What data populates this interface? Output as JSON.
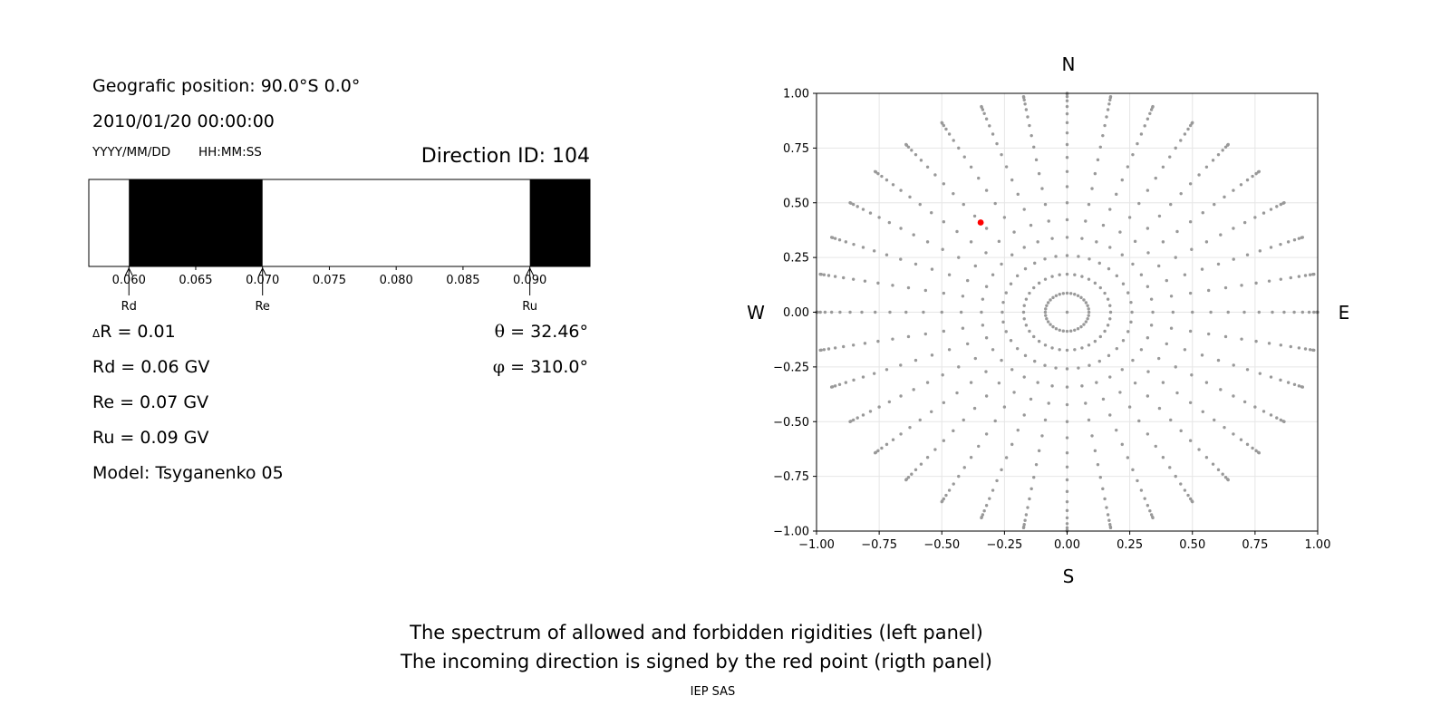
{
  "info": {
    "position": "Geografic position: 90.0°S 0.0°",
    "datetime": "2010/01/20 00:00:00",
    "date_format": "YYYY/MM/DD",
    "time_format": "HH:MM:SS",
    "direction_id": "Direction ID: 104",
    "delta_r": "R = 0.01",
    "delta_symbol": "Δ",
    "rd": "Rd = 0.06 GV",
    "re": "Re = 0.07 GV",
    "ru": "Ru = 0.09 GV",
    "model": "Model: Tsyganenko 05",
    "theta": "= 32.46°",
    "theta_symbol": "θ",
    "phi": "= 310.0°",
    "phi_symbol": "φ"
  },
  "captions": {
    "line1": "The spectrum of allowed and forbidden rigidities (left panel)",
    "line2": "The incoming direction is signed by the red point (rigth panel)",
    "credit": "IEP SAS"
  },
  "colors": {
    "forbidden": "#000000",
    "allowed": "#ffffff",
    "dots": "#999999",
    "highlight": "#ff0000",
    "grid": "#e6e6e6"
  },
  "chart_data": [
    {
      "type": "bar",
      "name": "rigidity-spectrum",
      "xlim": [
        0.057,
        0.0945
      ],
      "xticks": [
        0.06,
        0.065,
        0.07,
        0.075,
        0.08,
        0.085,
        0.09
      ],
      "xtick_labels": [
        "0.060",
        "0.065",
        "0.070",
        "0.075",
        "0.080",
        "0.085",
        "0.090"
      ],
      "forbidden_intervals": [
        [
          0.06,
          0.07
        ],
        [
          0.09,
          0.0945
        ]
      ],
      "markers": [
        {
          "label": "Rd",
          "value": 0.06
        },
        {
          "label": "Re",
          "value": 0.07
        },
        {
          "label": "Ru",
          "value": 0.09
        }
      ]
    },
    {
      "type": "scatter",
      "name": "directions",
      "xlim": [
        -1.0,
        1.0
      ],
      "ylim": [
        -1.0,
        1.0
      ],
      "ticks": [
        -1.0,
        -0.75,
        -0.5,
        -0.25,
        0.0,
        0.25,
        0.5,
        0.75,
        1.0
      ],
      "tick_labels": [
        "−1.00",
        "−0.75",
        "−0.50",
        "−0.25",
        "0.00",
        "0.25",
        "0.50",
        "0.75",
        "1.00"
      ],
      "grid": true,
      "compass": {
        "north": "N",
        "south": "S",
        "west": "W",
        "east": "E"
      },
      "directions": {
        "zenith_angles_deg": [
          0,
          5,
          10,
          15,
          20,
          25,
          30,
          35,
          40,
          45,
          50,
          55,
          60,
          65,
          70,
          75,
          80,
          85,
          90
        ],
        "azimuth_step_deg": 10,
        "azimuth_step_near_zenith_deg": 10
      },
      "highlight": {
        "theta_deg": 32.46,
        "phi_deg": 310.0,
        "x": -0.345,
        "y": 0.41
      }
    }
  ]
}
